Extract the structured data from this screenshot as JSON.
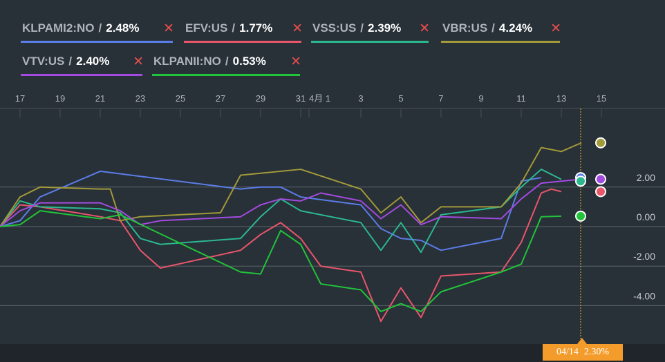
{
  "legend": [
    {
      "name": "KLPAMI2:NO",
      "value": "2.48%",
      "color": "#5b7de8"
    },
    {
      "name": "EFV:US",
      "value": "1.77%",
      "color": "#e8566b"
    },
    {
      "name": "VSS:US",
      "value": "2.39%",
      "color": "#2bb88f"
    },
    {
      "name": "VBR:US",
      "value": "4.24%",
      "color": "#a39a3a"
    },
    {
      "name": "VTV:US",
      "value": "2.40%",
      "color": "#a34be0"
    },
    {
      "name": "KLPANII:NO",
      "value": "0.53%",
      "color": "#21c43a"
    }
  ],
  "close_icon": "close-x-icon",
  "tooltip": {
    "date": "04/14",
    "value": "2.30%"
  },
  "chart_data": {
    "type": "line",
    "x_tick_labels": [
      "17",
      "19",
      "21",
      "23",
      "25",
      "27",
      "29",
      "31",
      "4月 1",
      "3",
      "5",
      "7",
      "9",
      "11",
      "13",
      "15"
    ],
    "y_tick_labels": [
      "2.00",
      "0.00",
      "-2.00",
      "-4.00"
    ],
    "ylim": [
      -5.8,
      5.5
    ],
    "gridlines": [
      2,
      0,
      -2,
      -4
    ],
    "hover_day": 14.5,
    "series": [
      {
        "name": "KLPAMI2:NO",
        "color": "#5b7de8",
        "points": [
          [
            0,
            0
          ],
          [
            1,
            0.3
          ],
          [
            2,
            1.5
          ],
          [
            5,
            2.8
          ],
          [
            12,
            1.9
          ],
          [
            13,
            2.0
          ],
          [
            14,
            2.0
          ],
          [
            15,
            1.5
          ],
          [
            18,
            1.1
          ],
          [
            19,
            -0.1
          ],
          [
            20,
            -0.6
          ],
          [
            21,
            -0.7
          ],
          [
            22,
            -1.2
          ],
          [
            25,
            -0.6
          ],
          [
            26,
            2.3
          ],
          [
            27,
            2.48
          ]
        ]
      },
      {
        "name": "EFV:US",
        "color": "#e8566b",
        "points": [
          [
            0,
            0
          ],
          [
            1,
            1.1
          ],
          [
            2,
            1.0
          ],
          [
            5,
            0.5
          ],
          [
            6,
            0.3
          ],
          [
            7,
            -1.2
          ],
          [
            8,
            -2.1
          ],
          [
            12,
            -1.2
          ],
          [
            13,
            -0.4
          ],
          [
            14,
            0.2
          ],
          [
            15,
            -0.6
          ],
          [
            16,
            -2.0
          ],
          [
            18,
            -2.3
          ],
          [
            19,
            -4.8
          ],
          [
            20,
            -3.1
          ],
          [
            21,
            -4.6
          ],
          [
            22,
            -2.5
          ],
          [
            25,
            -2.3
          ],
          [
            26,
            -0.8
          ],
          [
            27,
            1.7
          ],
          [
            27.5,
            1.9
          ],
          [
            28,
            1.77
          ]
        ]
      },
      {
        "name": "VSS:US",
        "color": "#2bb88f",
        "points": [
          [
            0,
            0
          ],
          [
            1,
            1.3
          ],
          [
            2,
            1.0
          ],
          [
            5,
            0.9
          ],
          [
            6,
            0.7
          ],
          [
            7,
            -0.6
          ],
          [
            8,
            -0.9
          ],
          [
            12,
            -0.6
          ],
          [
            13,
            0.5
          ],
          [
            14,
            1.4
          ],
          [
            15,
            0.8
          ],
          [
            18,
            0.2
          ],
          [
            19,
            -1.2
          ],
          [
            20,
            0.2
          ],
          [
            21,
            -1.3
          ],
          [
            22,
            0.6
          ],
          [
            25,
            1.0
          ],
          [
            26,
            2.0
          ],
          [
            27,
            2.9
          ],
          [
            28,
            2.39
          ]
        ]
      },
      {
        "name": "VBR:US",
        "color": "#a39a3a",
        "points": [
          [
            0,
            0
          ],
          [
            1,
            1.5
          ],
          [
            2,
            2.0
          ],
          [
            5,
            1.9
          ],
          [
            5.5,
            1.9
          ],
          [
            6,
            0.3
          ],
          [
            7,
            0.5
          ],
          [
            11,
            0.7
          ],
          [
            12,
            2.6
          ],
          [
            13,
            2.7
          ],
          [
            15,
            2.9
          ],
          [
            18,
            1.9
          ],
          [
            19,
            0.7
          ],
          [
            20,
            1.5
          ],
          [
            21,
            0.2
          ],
          [
            22,
            1.0
          ],
          [
            25,
            1.0
          ],
          [
            26,
            2.2
          ],
          [
            27,
            4.0
          ],
          [
            28,
            3.8
          ],
          [
            29,
            4.24
          ]
        ]
      },
      {
        "name": "VTV:US",
        "color": "#a34be0",
        "points": [
          [
            0,
            0
          ],
          [
            1,
            0.8
          ],
          [
            2,
            1.2
          ],
          [
            5,
            1.2
          ],
          [
            6,
            0.8
          ],
          [
            7,
            0.1
          ],
          [
            8,
            0.3
          ],
          [
            12,
            0.5
          ],
          [
            13,
            1.1
          ],
          [
            14,
            1.4
          ],
          [
            15,
            1.3
          ],
          [
            16,
            1.7
          ],
          [
            18,
            1.3
          ],
          [
            19,
            0.4
          ],
          [
            20,
            1.1
          ],
          [
            21,
            0.1
          ],
          [
            22,
            0.5
          ],
          [
            25,
            0.4
          ],
          [
            26,
            1.4
          ],
          [
            27,
            2.2
          ],
          [
            28,
            2.3
          ],
          [
            29,
            2.4
          ]
        ]
      },
      {
        "name": "KLPANII:NO",
        "color": "#21c43a",
        "points": [
          [
            0,
            0
          ],
          [
            1,
            0.1
          ],
          [
            2,
            0.8
          ],
          [
            5,
            0.4
          ],
          [
            6,
            0.6
          ],
          [
            12,
            -2.3
          ],
          [
            13,
            -2.4
          ],
          [
            14,
            -0.2
          ],
          [
            15,
            -0.9
          ],
          [
            16,
            -2.9
          ],
          [
            18,
            -3.2
          ],
          [
            19,
            -4.3
          ],
          [
            20,
            -3.9
          ],
          [
            21,
            -4.3
          ],
          [
            22,
            -3.3
          ],
          [
            25,
            -2.3
          ],
          [
            26,
            -1.9
          ],
          [
            27,
            0.5
          ],
          [
            28,
            0.53
          ]
        ]
      }
    ]
  }
}
